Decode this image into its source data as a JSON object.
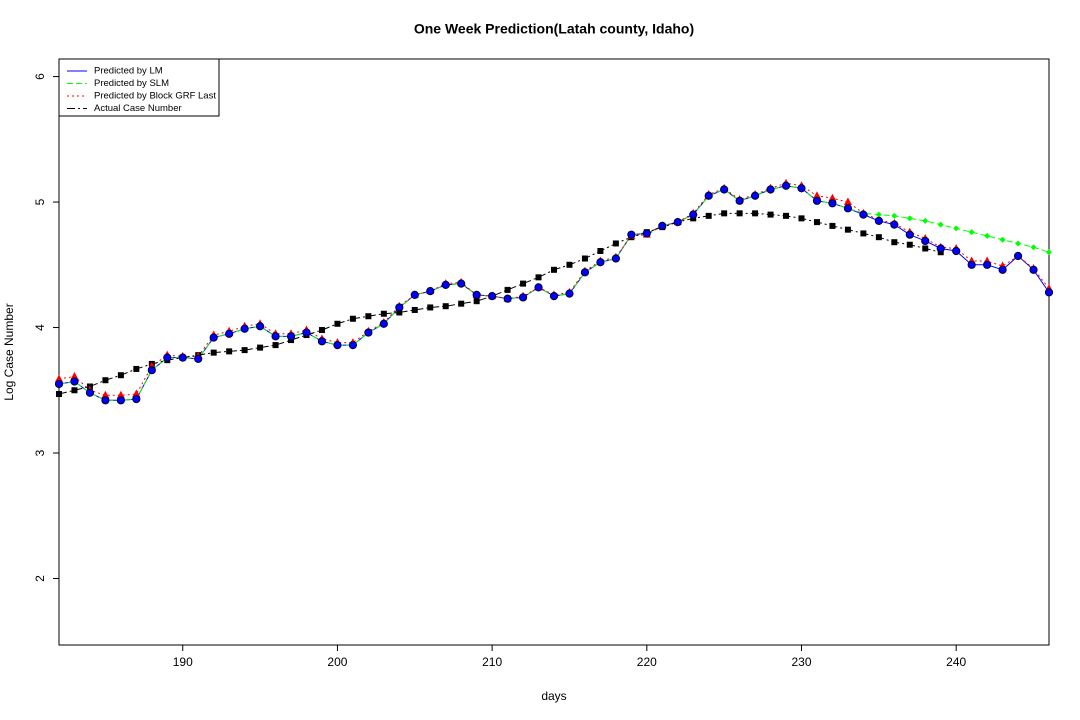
{
  "chart_data": {
    "type": "line",
    "title": "One Week Prediction(Latah county, Idaho)",
    "xlabel": "days",
    "ylabel": "Log Case Number",
    "x": [
      182,
      183,
      184,
      185,
      186,
      187,
      188,
      189,
      190,
      191,
      192,
      193,
      194,
      195,
      196,
      197,
      198,
      199,
      200,
      201,
      202,
      203,
      204,
      205,
      206,
      207,
      208,
      209,
      210,
      211,
      212,
      213,
      214,
      215,
      216,
      217,
      218,
      219,
      220,
      221,
      222,
      223,
      224,
      225,
      226,
      227,
      228,
      229,
      230,
      231,
      232,
      233,
      234,
      235,
      236,
      237,
      238,
      239,
      240,
      241,
      242,
      243,
      244,
      245,
      246
    ],
    "series": [
      {
        "name": "Predicted by LM",
        "color": "#0000ff",
        "values": [
          3.55,
          3.57,
          3.48,
          3.42,
          3.42,
          3.43,
          3.66,
          3.76,
          3.76,
          3.75,
          3.92,
          3.95,
          3.99,
          4.01,
          3.93,
          3.93,
          3.96,
          3.89,
          3.86,
          3.86,
          3.96,
          4.03,
          4.16,
          4.26,
          4.29,
          4.34,
          4.35,
          4.26,
          4.25,
          4.23,
          4.24,
          4.32,
          4.25,
          4.27,
          4.44,
          4.52,
          4.55,
          4.74,
          4.75,
          4.81,
          4.84,
          4.9,
          5.05,
          5.1,
          5.01,
          5.05,
          5.1,
          5.13,
          5.11,
          5.01,
          4.99,
          4.95,
          4.9,
          4.85,
          4.82,
          4.74,
          4.69,
          4.63,
          4.61,
          4.5,
          4.5,
          4.46,
          4.57,
          4.46,
          4.28
        ]
      },
      {
        "name": "Predicted by SLM",
        "color": "#00ff00",
        "values": [
          3.55,
          3.57,
          3.48,
          3.42,
          3.42,
          3.43,
          3.66,
          3.76,
          3.76,
          3.75,
          3.92,
          3.95,
          3.99,
          4.01,
          3.93,
          3.93,
          3.96,
          3.89,
          3.86,
          3.86,
          3.96,
          4.03,
          4.16,
          4.26,
          4.29,
          4.34,
          4.35,
          4.26,
          4.25,
          4.23,
          4.24,
          4.32,
          4.25,
          4.27,
          4.44,
          4.52,
          4.55,
          4.74,
          4.75,
          4.81,
          4.84,
          4.9,
          5.05,
          5.1,
          5.01,
          5.05,
          5.1,
          5.13,
          5.11,
          5.01,
          4.99,
          4.95,
          4.91,
          4.9,
          4.89,
          4.87,
          4.85,
          4.82,
          4.79,
          4.76,
          4.73,
          4.7,
          4.67,
          4.64,
          4.6
        ]
      },
      {
        "name": "Predicted by Block GRF Last",
        "color": "#ff0000",
        "values": [
          3.59,
          3.61,
          3.5,
          3.46,
          3.46,
          3.47,
          3.69,
          3.78,
          3.77,
          3.77,
          3.94,
          3.97,
          4.01,
          4.03,
          3.95,
          3.95,
          3.98,
          3.91,
          3.88,
          3.88,
          3.97,
          4.04,
          4.17,
          4.26,
          4.29,
          4.35,
          4.36,
          4.26,
          4.25,
          4.23,
          4.25,
          4.32,
          4.26,
          4.28,
          4.45,
          4.53,
          4.56,
          4.73,
          4.74,
          4.81,
          4.84,
          4.91,
          5.06,
          5.11,
          5.02,
          5.06,
          5.11,
          5.15,
          5.13,
          5.05,
          5.03,
          5.0,
          4.91,
          4.86,
          4.83,
          4.76,
          4.71,
          4.64,
          4.63,
          4.53,
          4.53,
          4.49,
          4.57,
          4.47,
          4.31
        ]
      },
      {
        "name": "Actual Case Number",
        "color": "#000000",
        "values": [
          3.47,
          3.5,
          3.53,
          3.58,
          3.62,
          3.67,
          3.71,
          3.74,
          3.76,
          3.78,
          3.8,
          3.81,
          3.82,
          3.84,
          3.86,
          3.9,
          3.94,
          3.98,
          4.03,
          4.07,
          4.09,
          4.11,
          4.12,
          4.14,
          4.16,
          4.17,
          4.19,
          4.21,
          4.25,
          4.3,
          4.35,
          4.4,
          4.46,
          4.5,
          4.55,
          4.61,
          4.67,
          4.72,
          4.76,
          4.8,
          4.84,
          4.87,
          4.89,
          4.91,
          4.91,
          4.91,
          4.9,
          4.89,
          4.87,
          4.84,
          4.81,
          4.78,
          4.75,
          4.72,
          4.68,
          4.66,
          4.63,
          4.6,
          null,
          null,
          null,
          null,
          null,
          null,
          null
        ]
      }
    ],
    "xlim": [
      182,
      246
    ],
    "xticks": [
      190,
      200,
      210,
      220,
      230,
      240
    ],
    "ylim": [
      1.47,
      6.14
    ],
    "yticks": [
      2,
      3,
      4,
      5,
      6
    ],
    "legend": "top-left"
  }
}
